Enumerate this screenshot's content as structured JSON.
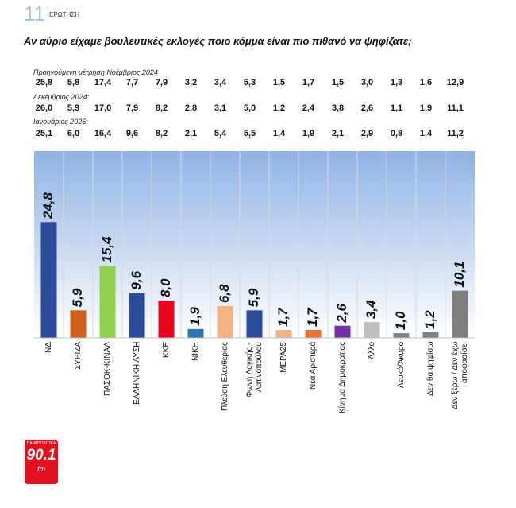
{
  "header": {
    "number": "11",
    "label": "ΕΡΩΤΗΣΗ",
    "question": "Αν αύριο είχαμε βουλευτικές εκλογές ποιο κόμμα είναι πιο πιθανό να ψηφίζατε;"
  },
  "previous": [
    {
      "label": "Προηγούμενη μέτρηση Νοέμβριος 2024",
      "values": [
        "25,8",
        "5,8",
        "17,4",
        "7,7",
        "7,9",
        "3,2",
        "3,4",
        "5,3",
        "1,5",
        "1,7",
        "1,5",
        "3,0",
        "1,3",
        "1,6",
        "12,9"
      ]
    },
    {
      "label": "Δεκέμβριος 2024:",
      "values": [
        "26,0",
        "5,9",
        "17,0",
        "7,9",
        "8,2",
        "2,8",
        "3,1",
        "5,0",
        "1,2",
        "2,4",
        "3,8",
        "2,6",
        "1,1",
        "1,9",
        "11,1"
      ]
    },
    {
      "label": "Ιανουάριος 2025:",
      "values": [
        "25,1",
        "6,0",
        "16,4",
        "9,6",
        "8,2",
        "2,1",
        "5,4",
        "5,5",
        "1,4",
        "1,9",
        "2,1",
        "2,9",
        "0,8",
        "1,4",
        "11,2"
      ]
    }
  ],
  "chart_data": {
    "type": "bar",
    "categories": [
      "ΝΔ",
      "ΣΥΡΙΖΑ",
      "ΠΑΣΟΚ-ΚΙΝΑΛ",
      "ΕΛΛΗΝΙΚΗ ΛΥΣΗ",
      "ΚΚΕ",
      "ΝΙΚΗ",
      "Πλεύση Ελευθερίας",
      "Φωνή Λογικής - Λατινοπούλου",
      "ΜΕΡΑ25",
      "Νέα Αριστερά",
      "Κίνημα Δημοκρατίας",
      "Άλλο",
      "Λευκό/Άκυρο",
      "Δεν θα ψηφίσω",
      "Δεν ξέρω / Δεν έχω αποφασίσει"
    ],
    "values": [
      24.8,
      5.9,
      15.4,
      9.6,
      8.0,
      1.9,
      6.8,
      5.9,
      1.7,
      1.7,
      2.6,
      3.4,
      1.0,
      1.2,
      10.1
    ],
    "value_labels": [
      "24,8",
      "5,9",
      "15,4",
      "9,6",
      "8,0",
      "1,9",
      "6,8",
      "5,9",
      "1,7",
      "1,7",
      "2,6",
      "3,4",
      "1,0",
      "1,2",
      "10,1"
    ],
    "colors": [
      "#2b4c9b",
      "#cf5f1d",
      "#92d050",
      "#2b4c9b",
      "#e8001c",
      "#2e75b6",
      "#f4b183",
      "#2b4c9b",
      "#f4b183",
      "#e97132",
      "#7030a0",
      "#bfbfbf",
      "#7f7f7f",
      "#7f7f7f",
      "#7f7f7f"
    ],
    "ylim": [
      0,
      40
    ]
  },
  "logo": {
    "top": "ΠΑΡΑΠΟΛΙΤΙΚΑ",
    "main": "90.1",
    "sub": "fm"
  }
}
